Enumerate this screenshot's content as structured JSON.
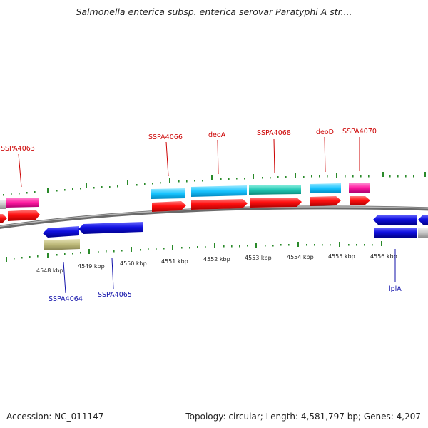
{
  "title": "Salmonella enterica subsp. enterica serovar Paratyphi A str....",
  "accession": "Accession: NC_011147",
  "summary": "Topology: circular; Length: 4,581,797 bp; Genes: 4,207",
  "axis_labels": [
    "4548 kbp",
    "4549 kbp",
    "4550 kbp",
    "4551 kbp",
    "4552 kbp",
    "4553 kbp",
    "4554 kbp",
    "4555 kbp",
    "4556 kbp"
  ],
  "top_genes": [
    "SSPA4063",
    "SSPA4066",
    "deoA",
    "SSPA4068",
    "deoD",
    "SSPA4070"
  ],
  "bottom_genes": [
    "SSPA4064",
    "SSPA4065",
    "lplA"
  ],
  "colors": {
    "red_feature": "#ff0000",
    "blue_feature": "#0000dd",
    "cyan_feature": "#00bfff",
    "teal_feature": "#20c0b0",
    "magenta_feature": "#ff1aa0",
    "olive_feature": "#bcb878",
    "grey_feature": "#c8c8c8",
    "top_label": "#cc0000",
    "bottom_label": "#1010aa",
    "tick": "#2a8a2a"
  }
}
